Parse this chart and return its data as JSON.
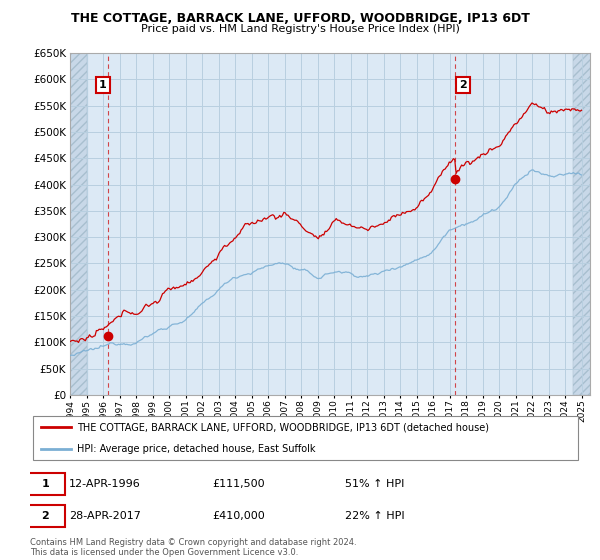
{
  "title": "THE COTTAGE, BARRACK LANE, UFFORD, WOODBRIDGE, IP13 6DT",
  "subtitle": "Price paid vs. HM Land Registry's House Price Index (HPI)",
  "legend_line1": "THE COTTAGE, BARRACK LANE, UFFORD, WOODBRIDGE, IP13 6DT (detached house)",
  "legend_line2": "HPI: Average price, detached house, East Suffolk",
  "sale1_date": "12-APR-1996",
  "sale1_price": "£111,500",
  "sale1_hpi": "51% ↑ HPI",
  "sale2_date": "28-APR-2017",
  "sale2_price": "£410,000",
  "sale2_hpi": "22% ↑ HPI",
  "footer": "Contains HM Land Registry data © Crown copyright and database right 2024.\nThis data is licensed under the Open Government Licence v3.0.",
  "hpi_color": "#7bafd4",
  "price_color": "#cc0000",
  "marker_color": "#cc0000",
  "sale1_year": 1996.29,
  "sale2_year": 2017.32,
  "sale1_price_val": 111500,
  "sale2_price_val": 410000,
  "ylim_min": 0,
  "ylim_max": 650000,
  "plot_bg": "#dce9f5",
  "grid_color": "#b8cfe0",
  "hatch_color": "#c8d8e8"
}
